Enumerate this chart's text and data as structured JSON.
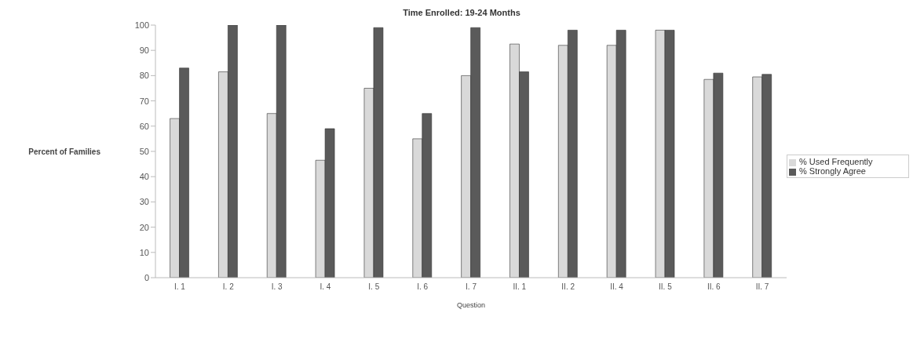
{
  "chart_data": {
    "type": "bar",
    "title": "Time Enrolled: 19-24 Months",
    "ylabel": "Percent of Families",
    "xlabel": "Question",
    "categories": [
      "I. 1",
      "I. 2",
      "I. 3",
      "I. 4",
      "I. 5",
      "I. 6",
      "I. 7",
      "II. 1",
      "II. 2",
      "II. 4",
      "II. 5",
      "II. 6",
      "II. 7"
    ],
    "series": [
      {
        "name": "% Used Frequently",
        "color": "#d9d9d9",
        "values": [
          63,
          81.5,
          65,
          46.5,
          75,
          55,
          80,
          92.5,
          92,
          92,
          98,
          78.5,
          79.5
        ]
      },
      {
        "name": "% Strongly Agree",
        "color": "#5a5a5a",
        "values": [
          83,
          100,
          100,
          59,
          99,
          65,
          99,
          81.5,
          98,
          98,
          98,
          81,
          80.5
        ]
      }
    ],
    "ylim": [
      0,
      100
    ],
    "yticks": [
      0,
      10,
      20,
      30,
      40,
      50,
      60,
      70,
      80,
      90,
      100
    ],
    "grid": false,
    "legend": "right"
  }
}
